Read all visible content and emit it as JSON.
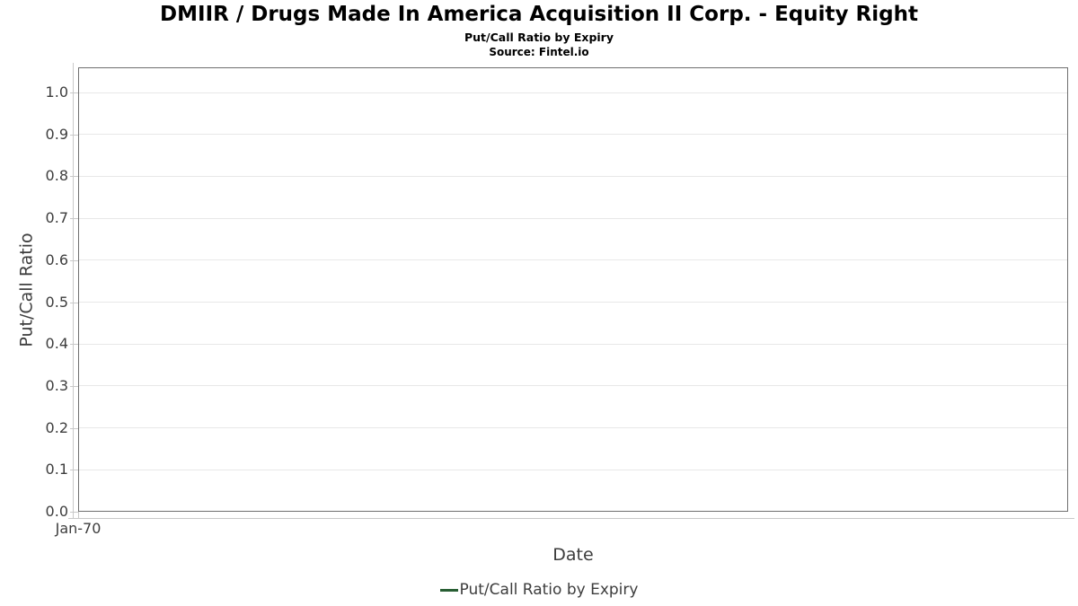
{
  "header": {
    "title": "DMIIR / Drugs Made In America Acquisition II Corp. - Equity Right",
    "subtitle": "Put/Call Ratio by Expiry",
    "source": "Source: Fintel.io"
  },
  "chart_data": {
    "type": "line",
    "title": "DMIIR / Drugs Made In America Acquisition II Corp. - Equity Right",
    "subtitle": "Put/Call Ratio by Expiry",
    "xlabel": "Date",
    "ylabel": "Put/Call Ratio",
    "x_tick_labels": [
      "Jan-70"
    ],
    "y_ticks": [
      0.0,
      0.1,
      0.2,
      0.3,
      0.4,
      0.5,
      0.6,
      0.7,
      0.8,
      0.9,
      1.0
    ],
    "ylim": [
      0,
      1.06
    ],
    "grid": true,
    "legend_position": "bottom",
    "series": [
      {
        "name": "Put/Call Ratio by Expiry",
        "color": "#285e33",
        "x": [],
        "y": []
      }
    ]
  },
  "colors": {
    "series_green": "#285e33",
    "plot_border": "#6f6f6f",
    "gridline": "#e8e8e8",
    "axis_line": "#c9c9c9",
    "axis_text": "#3d3d3d",
    "title_text": "#000000",
    "background": "#ffffff"
  }
}
